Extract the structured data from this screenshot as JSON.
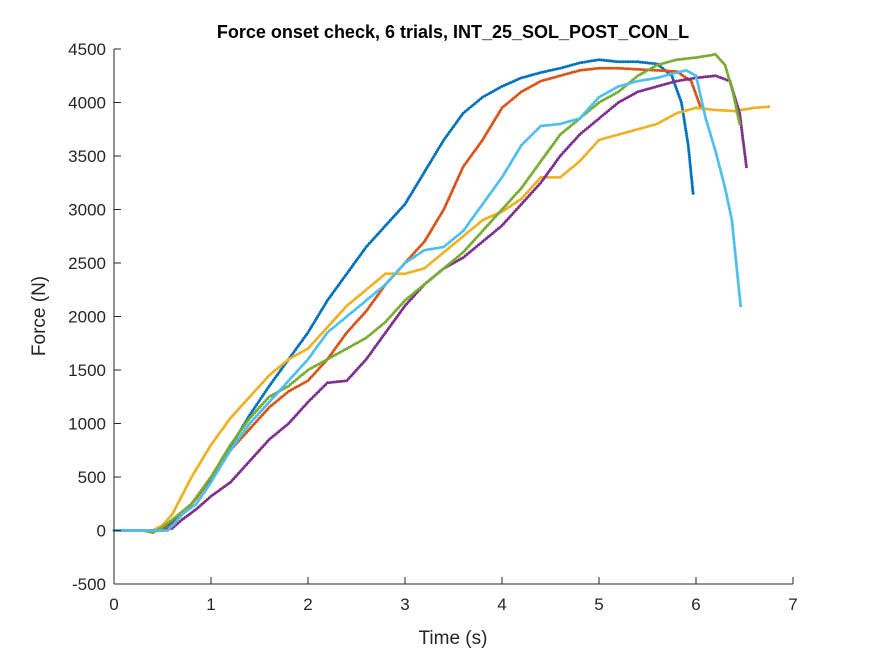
{
  "chart_data": {
    "type": "scatter",
    "title": "Force onset check, 6 trials, INT_25_SOL_POST_CON_L",
    "xlabel": "Time (s)",
    "ylabel": "Force (N)",
    "xlim": [
      0,
      7
    ],
    "ylim": [
      -500,
      4500
    ],
    "xticks": [
      0,
      1,
      2,
      3,
      4,
      5,
      6,
      7
    ],
    "yticks": [
      -500,
      0,
      500,
      1000,
      1500,
      2000,
      2500,
      3000,
      3500,
      4000,
      4500
    ],
    "grid": false,
    "legend": "none",
    "series": [
      {
        "color": "#0072BD",
        "x": [
          0,
          0.45,
          0.55,
          0.65,
          0.8,
          1.0,
          1.2,
          1.4,
          1.6,
          1.8,
          2.0,
          2.2,
          2.4,
          2.6,
          2.8,
          3.0,
          3.2,
          3.4,
          3.6,
          3.8,
          4.0,
          4.2,
          4.4,
          4.6,
          4.8,
          5.0,
          5.2,
          5.4,
          5.6,
          5.75,
          5.85,
          5.92,
          5.97
        ],
        "y": [
          0,
          0,
          40,
          120,
          250,
          480,
          780,
          1080,
          1350,
          1600,
          1850,
          2150,
          2400,
          2650,
          2850,
          3050,
          3350,
          3650,
          3900,
          4050,
          4150,
          4230,
          4280,
          4320,
          4370,
          4400,
          4380,
          4380,
          4360,
          4250,
          4000,
          3600,
          3150
        ]
      },
      {
        "color": "#D95319",
        "x": [
          0,
          0.5,
          0.6,
          0.7,
          0.85,
          1.0,
          1.2,
          1.4,
          1.6,
          1.8,
          2.0,
          2.2,
          2.4,
          2.6,
          2.8,
          3.0,
          3.2,
          3.4,
          3.6,
          3.8,
          4.0,
          4.2,
          4.4,
          4.6,
          4.8,
          5.0,
          5.2,
          5.4,
          5.6,
          5.8,
          5.95,
          6.05
        ],
        "y": [
          0,
          0,
          50,
          150,
          300,
          500,
          750,
          950,
          1150,
          1300,
          1400,
          1600,
          1850,
          2050,
          2300,
          2500,
          2700,
          3000,
          3400,
          3650,
          3950,
          4100,
          4200,
          4250,
          4300,
          4320,
          4320,
          4310,
          4300,
          4290,
          4200,
          3950
        ]
      },
      {
        "color": "#EDB120",
        "x": [
          0,
          0.4,
          0.5,
          0.6,
          0.8,
          1.0,
          1.2,
          1.4,
          1.6,
          1.8,
          2.0,
          2.2,
          2.4,
          2.6,
          2.8,
          3.0,
          3.2,
          3.4,
          3.6,
          3.8,
          4.0,
          4.2,
          4.4,
          4.6,
          4.8,
          5.0,
          5.2,
          5.4,
          5.6,
          5.8,
          6.0,
          6.2,
          6.4,
          6.6,
          6.75
        ],
        "y": [
          0,
          0,
          50,
          150,
          500,
          800,
          1050,
          1250,
          1450,
          1600,
          1700,
          1900,
          2100,
          2250,
          2400,
          2400,
          2450,
          2600,
          2750,
          2900,
          2980,
          3100,
          3300,
          3300,
          3450,
          3650,
          3700,
          3750,
          3800,
          3900,
          3950,
          3930,
          3920,
          3950,
          3960
        ]
      },
      {
        "color": "#7E2F8E",
        "x": [
          0,
          0.5,
          0.6,
          0.7,
          0.85,
          1.0,
          1.2,
          1.4,
          1.6,
          1.8,
          2.0,
          2.2,
          2.4,
          2.6,
          2.8,
          3.0,
          3.2,
          3.4,
          3.6,
          3.8,
          4.0,
          4.2,
          4.4,
          4.6,
          4.8,
          5.0,
          5.2,
          5.4,
          5.6,
          5.8,
          6.0,
          6.2,
          6.35,
          6.45,
          6.52
        ],
        "y": [
          0,
          0,
          20,
          100,
          200,
          320,
          450,
          650,
          850,
          1000,
          1200,
          1380,
          1400,
          1600,
          1850,
          2100,
          2300,
          2450,
          2550,
          2700,
          2850,
          3050,
          3250,
          3500,
          3700,
          3850,
          4000,
          4100,
          4150,
          4200,
          4230,
          4250,
          4200,
          3900,
          3400
        ]
      },
      {
        "color": "#77AC30",
        "x": [
          0,
          0.3,
          0.4,
          0.5,
          0.6,
          0.8,
          1.0,
          1.2,
          1.4,
          1.6,
          1.8,
          2.0,
          2.2,
          2.4,
          2.6,
          2.8,
          3.0,
          3.2,
          3.4,
          3.6,
          3.8,
          4.0,
          4.2,
          4.4,
          4.6,
          4.8,
          5.0,
          5.2,
          5.4,
          5.6,
          5.8,
          6.0,
          6.2,
          6.3,
          6.38,
          6.45
        ],
        "y": [
          0,
          0,
          -20,
          30,
          100,
          250,
          500,
          800,
          1050,
          1250,
          1350,
          1500,
          1600,
          1700,
          1800,
          1950,
          2150,
          2300,
          2450,
          2600,
          2800,
          3000,
          3200,
          3450,
          3700,
          3850,
          4000,
          4100,
          4250,
          4350,
          4400,
          4420,
          4450,
          4350,
          4100,
          3800
        ]
      },
      {
        "color": "#4DBEEE",
        "x": [
          0,
          0.55,
          0.62,
          0.7,
          0.85,
          1.0,
          1.2,
          1.4,
          1.6,
          1.8,
          2.0,
          2.2,
          2.4,
          2.6,
          2.8,
          3.0,
          3.2,
          3.4,
          3.6,
          3.8,
          4.0,
          4.2,
          4.4,
          4.6,
          4.8,
          5.0,
          5.2,
          5.4,
          5.6,
          5.8,
          5.9,
          6.0,
          6.1,
          6.2,
          6.3,
          6.37,
          6.42,
          6.46
        ],
        "y": [
          0,
          0,
          60,
          150,
          250,
          450,
          750,
          1000,
          1200,
          1400,
          1600,
          1850,
          2000,
          2150,
          2300,
          2500,
          2620,
          2650,
          2800,
          3050,
          3300,
          3600,
          3780,
          3800,
          3850,
          4050,
          4150,
          4200,
          4230,
          4280,
          4300,
          4250,
          3850,
          3550,
          3200,
          2900,
          2450,
          2100
        ]
      }
    ]
  }
}
